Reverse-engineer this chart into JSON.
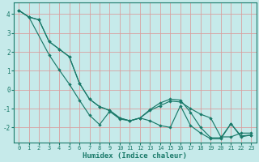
{
  "xlabel": "Humidex (Indice chaleur)",
  "ylabel": "",
  "bg_color": "#c6eaea",
  "grid_color": "#e0b0b0",
  "line_color": "#1a7a6a",
  "xlim": [
    -0.5,
    23.5
  ],
  "ylim": [
    -2.8,
    4.6
  ],
  "yticks": [
    -2,
    -1,
    0,
    1,
    2,
    3,
    4
  ],
  "xticks": [
    0,
    1,
    2,
    3,
    4,
    5,
    6,
    7,
    8,
    9,
    10,
    11,
    12,
    13,
    14,
    15,
    16,
    17,
    18,
    19,
    20,
    21,
    22,
    23
  ],
  "s1_x": [
    0,
    1,
    2,
    3,
    4,
    5,
    6,
    7,
    8,
    9,
    10,
    11,
    12,
    13,
    14,
    15,
    16,
    17,
    18,
    19,
    20,
    21,
    22,
    23
  ],
  "s1_y": [
    4.2,
    3.85,
    3.7,
    2.55,
    2.15,
    1.75,
    0.35,
    -0.5,
    -0.9,
    -1.1,
    -1.5,
    -1.65,
    -1.5,
    -1.1,
    -0.85,
    -0.6,
    -0.65,
    -1.0,
    -1.3,
    -1.5,
    -2.5,
    -2.5,
    -2.3,
    -2.3
  ],
  "s2_x": [
    0,
    1,
    3,
    4,
    5,
    6,
    7,
    8,
    9,
    10,
    11,
    12,
    13,
    14,
    15,
    16,
    17,
    18,
    19,
    20,
    21,
    22,
    23
  ],
  "s2_y": [
    4.2,
    3.85,
    1.85,
    1.05,
    0.3,
    -0.55,
    -1.35,
    -1.85,
    -1.15,
    -1.55,
    -1.65,
    -1.5,
    -1.65,
    -1.9,
    -2.0,
    -0.85,
    -1.9,
    -2.3,
    -2.6,
    -2.6,
    -1.8,
    -2.5,
    -2.4
  ],
  "s3_x": [
    0,
    1,
    2,
    3,
    4,
    5,
    6,
    7,
    8,
    9,
    10,
    11,
    12,
    13,
    14,
    15,
    16,
    17,
    18,
    19,
    20,
    21,
    22,
    23
  ],
  "s3_y": [
    4.2,
    3.85,
    3.7,
    2.55,
    2.15,
    1.75,
    0.35,
    -0.5,
    -0.9,
    -1.1,
    -1.5,
    -1.65,
    -1.5,
    -1.05,
    -0.7,
    -0.5,
    -0.55,
    -1.2,
    -2.0,
    -2.55,
    -2.55,
    -1.8,
    -2.45,
    -2.4
  ]
}
